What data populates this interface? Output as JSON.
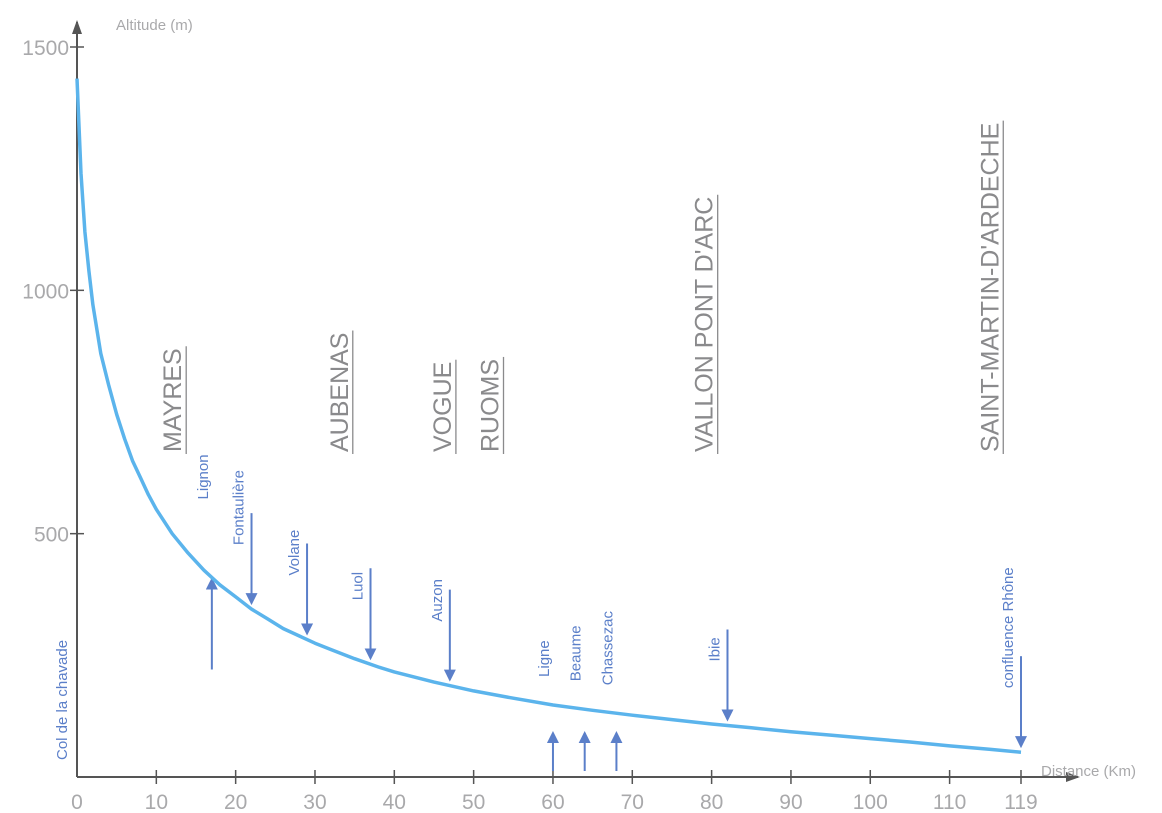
{
  "chart_data": {
    "type": "line",
    "title": "",
    "xlabel": "Distance (Km)",
    "ylabel": "Altitude (m)",
    "xlim": [
      0,
      119
    ],
    "ylim": [
      0,
      1500
    ],
    "x_ticks": [
      {
        "v": 0,
        "label": "0"
      },
      {
        "v": 10,
        "label": "10"
      },
      {
        "v": 20,
        "label": "20"
      },
      {
        "v": 30,
        "label": "30"
      },
      {
        "v": 40,
        "label": "40"
      },
      {
        "v": 50,
        "label": "50"
      },
      {
        "v": 60,
        "label": "60"
      },
      {
        "v": 70,
        "label": "70"
      },
      {
        "v": 80,
        "label": "80"
      },
      {
        "v": 90,
        "label": "90"
      },
      {
        "v": 100,
        "label": "100"
      },
      {
        "v": 110,
        "label": "110"
      },
      {
        "v": 119,
        "label": "119"
      }
    ],
    "y_ticks": [
      {
        "v": 500,
        "label": "500"
      },
      {
        "v": 1000,
        "label": "1000"
      },
      {
        "v": 1500,
        "label": "1500"
      }
    ],
    "series": [
      {
        "color": "#5bb4ec",
        "points": [
          [
            0,
            1435
          ],
          [
            0.5,
            1240
          ],
          [
            1,
            1120
          ],
          [
            1.5,
            1040
          ],
          [
            2,
            970
          ],
          [
            3,
            870
          ],
          [
            4,
            805
          ],
          [
            5,
            745
          ],
          [
            6,
            695
          ],
          [
            7,
            650
          ],
          [
            8,
            615
          ],
          [
            9,
            580
          ],
          [
            10,
            550
          ],
          [
            12,
            500
          ],
          [
            14,
            460
          ],
          [
            16,
            425
          ],
          [
            18,
            395
          ],
          [
            20,
            370
          ],
          [
            22,
            345
          ],
          [
            24,
            325
          ],
          [
            26,
            305
          ],
          [
            28,
            290
          ],
          [
            30,
            275
          ],
          [
            32,
            262
          ],
          [
            35,
            243
          ],
          [
            38,
            226
          ],
          [
            40,
            216
          ],
          [
            45,
            195
          ],
          [
            50,
            177
          ],
          [
            55,
            162
          ],
          [
            60,
            148
          ],
          [
            65,
            137
          ],
          [
            70,
            127
          ],
          [
            75,
            118
          ],
          [
            80,
            109
          ],
          [
            85,
            101
          ],
          [
            90,
            93
          ],
          [
            95,
            86
          ],
          [
            100,
            79
          ],
          [
            105,
            72
          ],
          [
            110,
            64
          ],
          [
            115,
            57
          ],
          [
            119,
            51
          ]
        ]
      }
    ],
    "towns": [
      {
        "name": "MAYRES",
        "x": 12
      },
      {
        "name": "AUBENAS",
        "x": 33
      },
      {
        "name": "VOGUE",
        "x": 46
      },
      {
        "name": "RUOMS",
        "x": 52
      },
      {
        "name": "VALLON PONT D'ARC",
        "x": 79
      },
      {
        "name": "SAINT-MARTIN-D'ARDECHE",
        "x": 115
      }
    ],
    "rivers": [
      {
        "name": "Col de la chavade",
        "x": -2,
        "dir": "none"
      },
      {
        "name": "Lignon",
        "x": 17,
        "dir": "up"
      },
      {
        "name": "Fontaulière",
        "x": 22,
        "dir": "down"
      },
      {
        "name": "Volane",
        "x": 29,
        "dir": "down"
      },
      {
        "name": "Luol",
        "x": 37,
        "dir": "down"
      },
      {
        "name": "Auzon",
        "x": 47,
        "dir": "down"
      },
      {
        "name": "Ligne",
        "x": 60,
        "dir": "up"
      },
      {
        "name": "Beaume",
        "x": 64,
        "dir": "up"
      },
      {
        "name": "Chassezac",
        "x": 68,
        "dir": "up"
      },
      {
        "name": "Ibie",
        "x": 82,
        "dir": "down"
      },
      {
        "name": "confluence Rhône",
        "x": 119,
        "dir": "down"
      }
    ],
    "colors": {
      "axis": "#555555",
      "axis_text": "#a9a9ab",
      "town_text": "#8a8a8c",
      "river": "#5b7fc9",
      "curve": "#5bb4ec"
    }
  }
}
